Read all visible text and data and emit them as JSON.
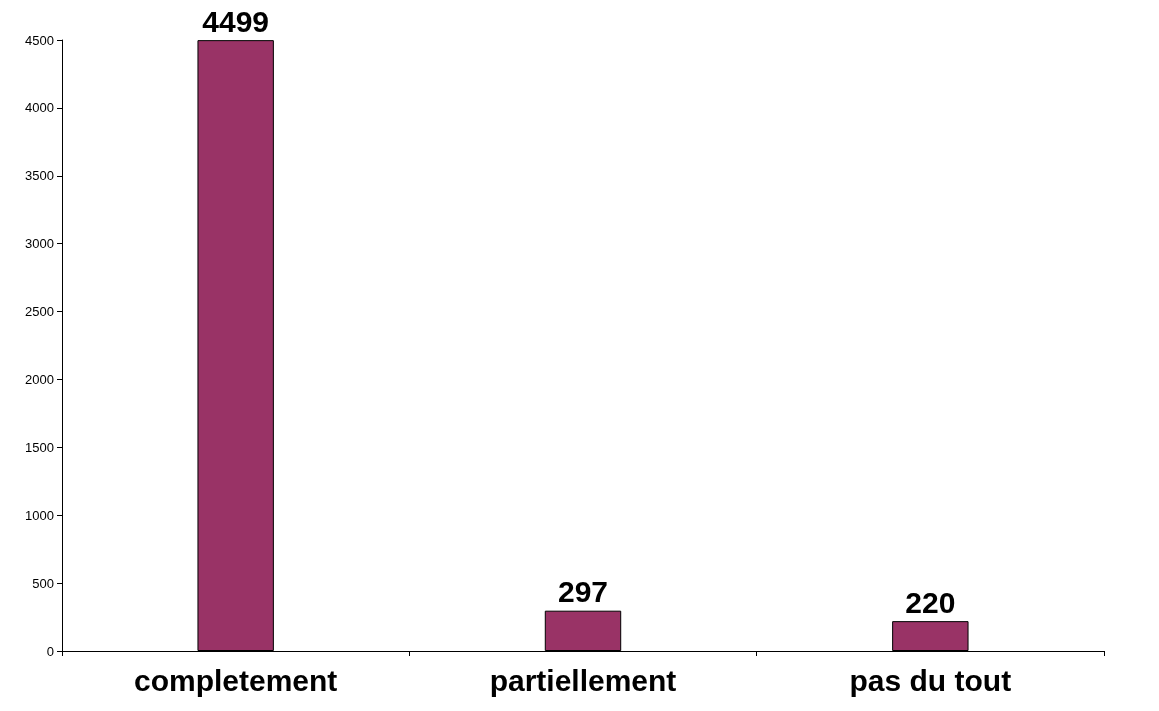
{
  "chart_data": {
    "type": "bar",
    "categories": [
      "completement",
      "partiellement",
      "pas du tout"
    ],
    "values": [
      4499,
      297,
      220
    ],
    "color": "#993366",
    "ylim": [
      0,
      4500
    ],
    "yticks": [
      0,
      500,
      1000,
      1500,
      2000,
      2500,
      3000,
      3500,
      4000,
      4500
    ],
    "grid": false,
    "data_labels": true
  }
}
